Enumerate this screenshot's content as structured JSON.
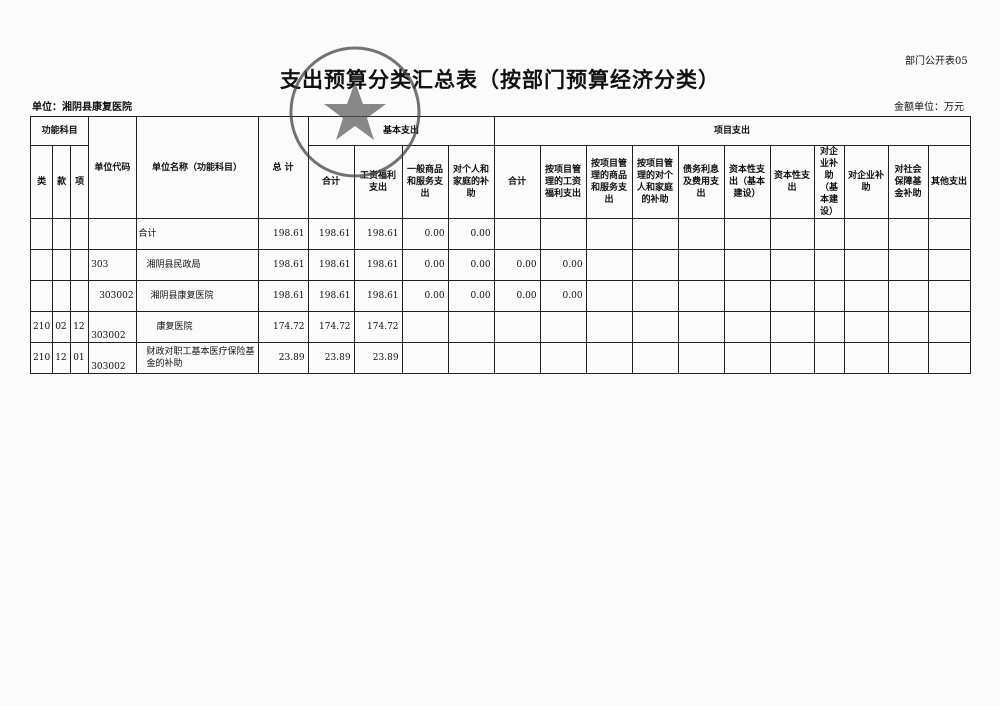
{
  "form_number": "部门公开表05",
  "title": "支出预算分类汇总表（按部门预算经济分类）",
  "unit_label": "单位：湘阴县康复医院",
  "money_unit": "金额单位：万元",
  "headers": {
    "func_subject": "功能科目",
    "lei": "类",
    "kuan": "款",
    "xiang": "项",
    "unit_code": "单位代码",
    "unit_name": "单位名称（功能科目）",
    "total": "总 计",
    "basic": "基本支出",
    "project": "项目支出",
    "basic_cols": [
      "合计",
      "工资福利支出",
      "一般商品和服务支出",
      "对个人和家庭的补助"
    ],
    "project_cols": [
      "合计",
      "按项目管理的工资福利支出",
      "按项目管理的商品和服务支出",
      "按项目管理的对个人和家庭的补助",
      "债务利息及费用支出",
      "资本性支出（基本建设）",
      "资本性支出",
      "对企业补助（基本建设）",
      "对企业补助",
      "对社会保障基金补助",
      "其他支出"
    ]
  },
  "rows": [
    {
      "lei": "",
      "kuan": "",
      "xiang": "",
      "code": "",
      "name": "合计",
      "total": "198.61",
      "b_total": "198.61",
      "b_wage": "198.61",
      "b_goods": "0.00",
      "b_family": "0.00",
      "p_total": "",
      "p_wage": ""
    },
    {
      "lei": "",
      "kuan": "",
      "xiang": "",
      "code": "303",
      "name": "湘阴县民政局",
      "total": "198.61",
      "b_total": "198.61",
      "b_wage": "198.61",
      "b_goods": "0.00",
      "b_family": "0.00",
      "p_total": "0.00",
      "p_wage": "0.00"
    },
    {
      "lei": "",
      "kuan": "",
      "xiang": "",
      "code": "303002",
      "name": "湘阴县康复医院",
      "total": "198.61",
      "b_total": "198.61",
      "b_wage": "198.61",
      "b_goods": "0.00",
      "b_family": "0.00",
      "p_total": "0.00",
      "p_wage": "0.00"
    },
    {
      "lei": "210",
      "kuan": "02",
      "xiang": "12",
      "code": "303002",
      "name": "康复医院",
      "total": "174.72",
      "b_total": "174.72",
      "b_wage": "174.72",
      "b_goods": "",
      "b_family": "",
      "p_total": "",
      "p_wage": ""
    },
    {
      "lei": "210",
      "kuan": "12",
      "xiang": "01",
      "code": "303002",
      "name": "财政对职工基本医疗保险基金的补助",
      "total": "23.89",
      "b_total": "23.89",
      "b_wage": "23.89",
      "b_goods": "",
      "b_family": "",
      "p_total": "",
      "p_wage": ""
    }
  ]
}
